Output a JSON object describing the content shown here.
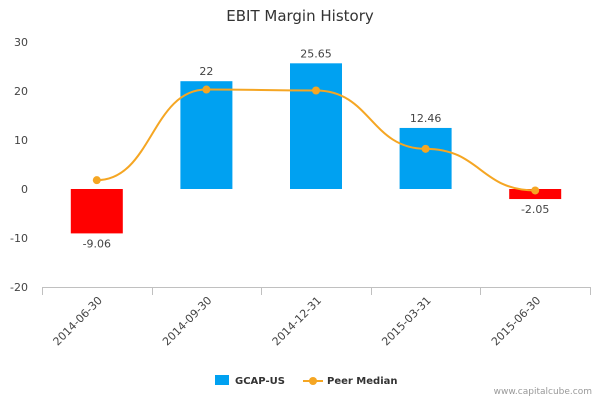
{
  "chart_data": {
    "type": "bar",
    "title": "EBIT Margin History",
    "categories": [
      "2014-06-30",
      "2014-09-30",
      "2014-12-31",
      "2015-03-31",
      "2015-06-30"
    ],
    "series": [
      {
        "name": "GCAP-US",
        "kind": "bar",
        "values": [
          -9.06,
          22,
          25.65,
          12.46,
          -2.05
        ],
        "data_labels": [
          "-9.06",
          "22",
          "25.65",
          "12.46",
          "-2.05"
        ],
        "color_positive": "#00A1F1",
        "color_negative": "#FF0000"
      },
      {
        "name": "Peer Median",
        "kind": "line",
        "values": [
          1.8,
          20.3,
          20.1,
          8.2,
          -0.3
        ],
        "color": "#F5A623"
      }
    ],
    "ylim": [
      -20,
      30
    ],
    "yticks": [
      -20,
      -10,
      0,
      10,
      20,
      30
    ],
    "xlabel": "",
    "ylabel": "",
    "grid": false,
    "legend_position": "bottom-center"
  },
  "credit": "www.capitalcube.com"
}
